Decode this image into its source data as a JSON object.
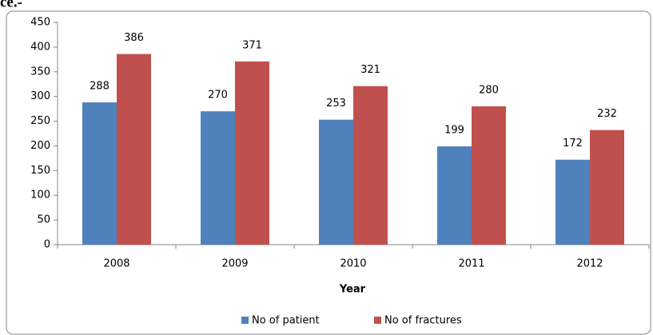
{
  "caption_fragment": "ce.-",
  "chart_data": {
    "type": "bar",
    "xlabel": "Year",
    "categories": [
      "2008",
      "2009",
      "2010",
      "2011",
      "2012"
    ],
    "series": [
      {
        "name": "No of patient",
        "color": "#4f81bd",
        "values": [
          288,
          270,
          253,
          199,
          172
        ]
      },
      {
        "name": "No of fractures",
        "color": "#c0504d",
        "values": [
          386,
          371,
          321,
          280,
          232
        ]
      }
    ],
    "ylim": [
      0,
      450
    ],
    "yticks": [
      0,
      50,
      100,
      150,
      200,
      250,
      300,
      350,
      400,
      450
    ],
    "legend": "bottom",
    "grid": false
  }
}
